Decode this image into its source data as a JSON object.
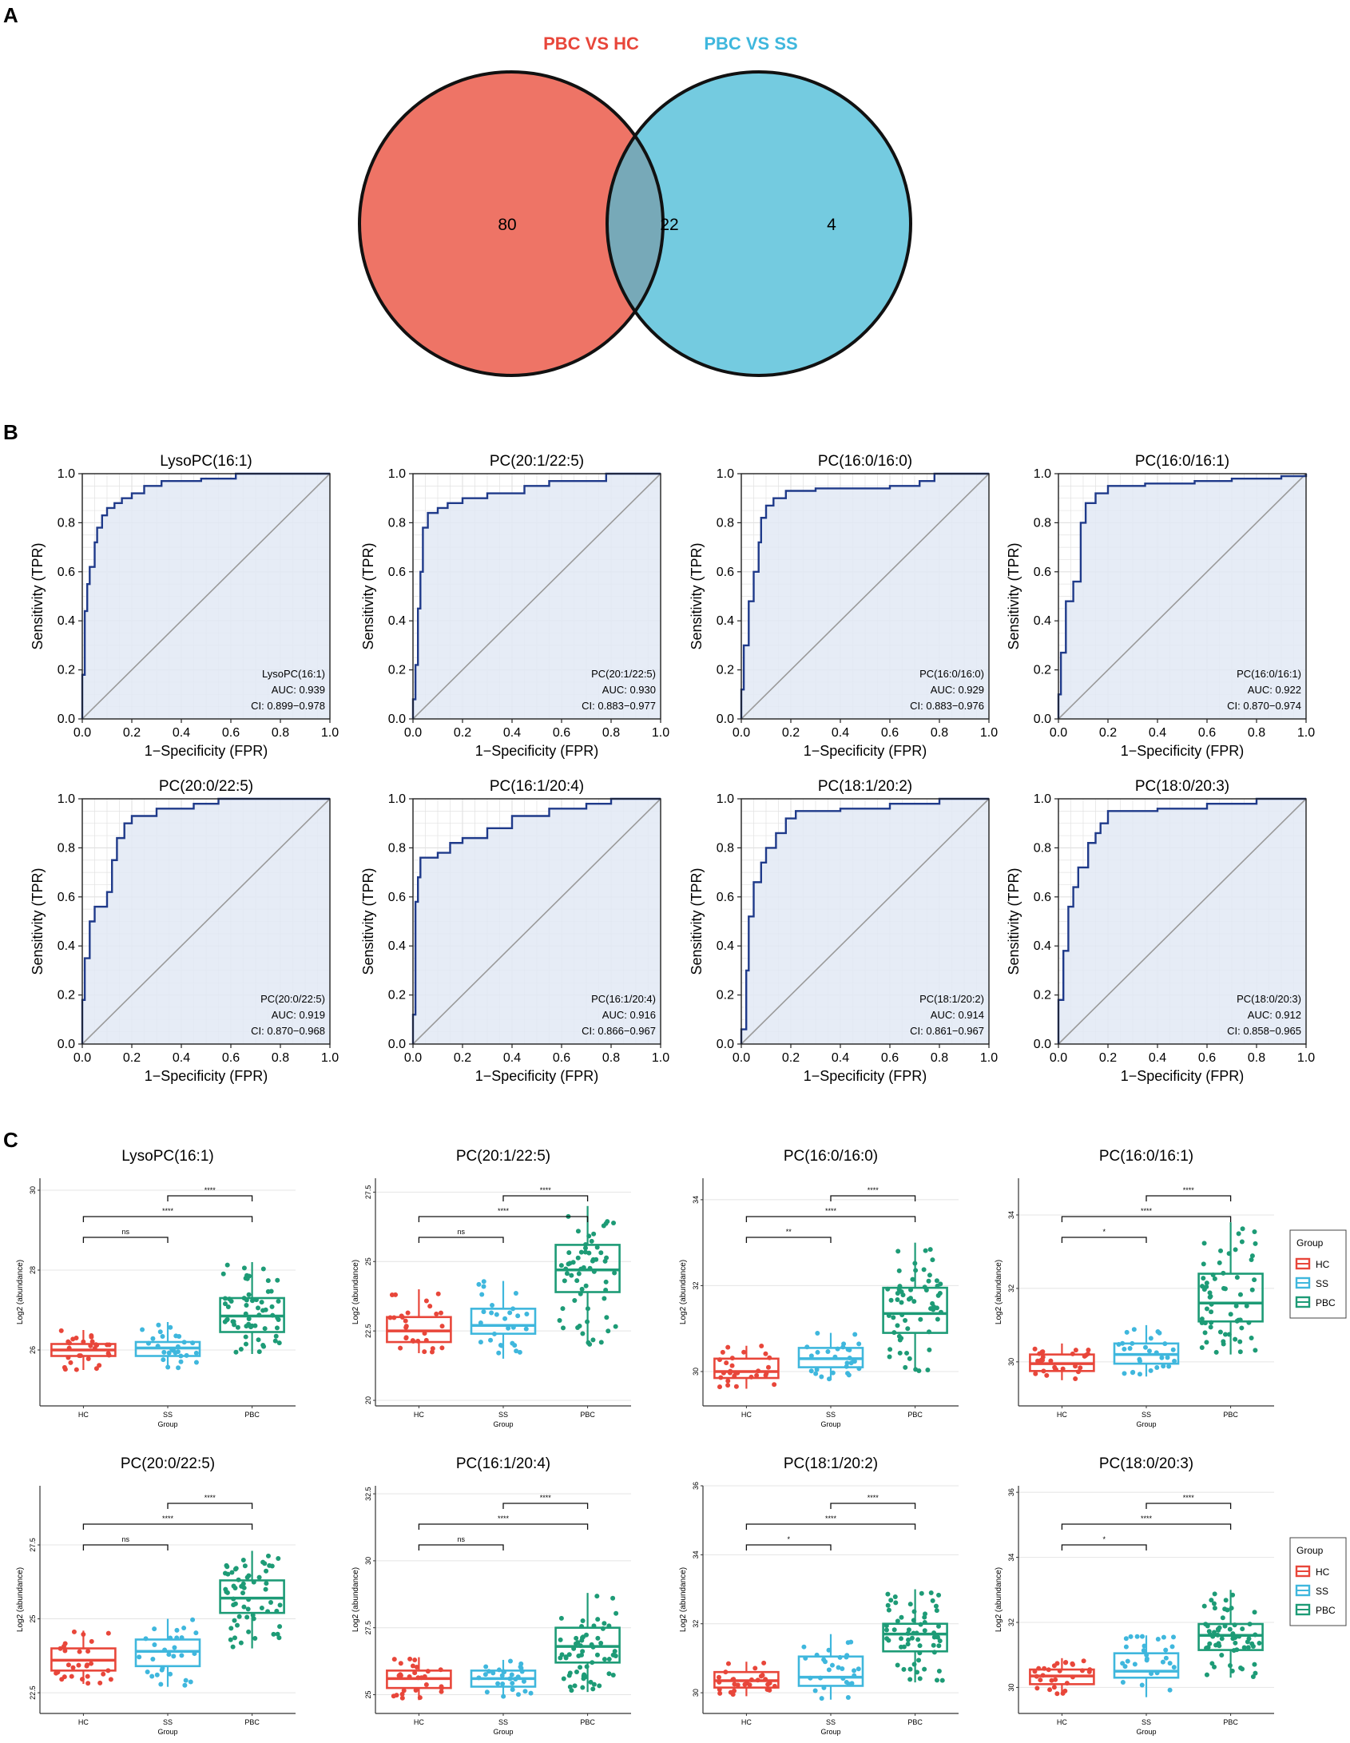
{
  "chart_data": [
    {
      "type": "venn",
      "panel": "A",
      "sets": [
        {
          "name": "PBC VS HC",
          "color": "#ee7466"
        },
        {
          "name": "PBC VS SS",
          "color": "#74cbe0"
        }
      ],
      "counts": {
        "only_first": "80",
        "intersection": "22",
        "only_second": "4"
      },
      "overlap_color": "#77a9b8"
    },
    {
      "type": "roc_grid",
      "panel": "B",
      "xlabel": "1−Specificity (FPR)",
      "ylabel": "Sensitivity (TPR)",
      "ticks": [
        "0.0",
        "0.2",
        "0.4",
        "0.6",
        "0.8",
        "1.0"
      ],
      "curve_color": "#1f3a8a",
      "fill_color": "#e2e9f4",
      "panels": [
        {
          "title": "LysoPC(16:1)",
          "note_name": "LysoPC(16:1)",
          "auc": "AUC: 0.939",
          "ci": "CI: 0.899−0.978",
          "points": [
            [
              0,
              0
            ],
            [
              0,
              0.18
            ],
            [
              0.01,
              0.44
            ],
            [
              0.02,
              0.55
            ],
            [
              0.03,
              0.62
            ],
            [
              0.05,
              0.72
            ],
            [
              0.06,
              0.78
            ],
            [
              0.08,
              0.83
            ],
            [
              0.1,
              0.86
            ],
            [
              0.13,
              0.88
            ],
            [
              0.16,
              0.9
            ],
            [
              0.2,
              0.92
            ],
            [
              0.25,
              0.95
            ],
            [
              0.32,
              0.97
            ],
            [
              0.48,
              0.98
            ],
            [
              0.62,
              1.0
            ],
            [
              1,
              1.0
            ]
          ]
        },
        {
          "title": "PC(20:1/22:5)",
          "note_name": "PC(20:1/22:5)",
          "auc": "AUC: 0.930",
          "ci": "CI: 0.883−0.977",
          "points": [
            [
              0,
              0
            ],
            [
              0,
              0.08
            ],
            [
              0.01,
              0.22
            ],
            [
              0.02,
              0.45
            ],
            [
              0.03,
              0.6
            ],
            [
              0.04,
              0.78
            ],
            [
              0.06,
              0.84
            ],
            [
              0.1,
              0.86
            ],
            [
              0.14,
              0.88
            ],
            [
              0.2,
              0.9
            ],
            [
              0.3,
              0.92
            ],
            [
              0.45,
              0.95
            ],
            [
              0.55,
              0.97
            ],
            [
              0.78,
              1.0
            ],
            [
              1,
              1.0
            ]
          ]
        },
        {
          "title": "PC(16:0/16:0)",
          "note_name": "PC(16:0/16:0)",
          "auc": "AUC: 0.929",
          "ci": "CI: 0.883−0.976",
          "points": [
            [
              0,
              0
            ],
            [
              0,
              0.12
            ],
            [
              0.01,
              0.3
            ],
            [
              0.03,
              0.48
            ],
            [
              0.05,
              0.6
            ],
            [
              0.07,
              0.72
            ],
            [
              0.08,
              0.82
            ],
            [
              0.1,
              0.87
            ],
            [
              0.13,
              0.9
            ],
            [
              0.18,
              0.93
            ],
            [
              0.3,
              0.94
            ],
            [
              0.6,
              0.95
            ],
            [
              0.72,
              0.97
            ],
            [
              0.78,
              1.0
            ],
            [
              1,
              1.0
            ]
          ]
        },
        {
          "title": "PC(16:0/16:1)",
          "note_name": "PC(16:0/16:1)",
          "auc": "AUC: 0.922",
          "ci": "CI: 0.870−0.974",
          "points": [
            [
              0,
              0
            ],
            [
              0,
              0.1
            ],
            [
              0.01,
              0.27
            ],
            [
              0.03,
              0.48
            ],
            [
              0.06,
              0.56
            ],
            [
              0.09,
              0.8
            ],
            [
              0.11,
              0.88
            ],
            [
              0.15,
              0.92
            ],
            [
              0.2,
              0.95
            ],
            [
              0.35,
              0.96
            ],
            [
              0.55,
              0.97
            ],
            [
              0.7,
              0.98
            ],
            [
              0.9,
              0.99
            ],
            [
              1,
              1.0
            ]
          ]
        },
        {
          "title": "PC(20:0/22:5)",
          "note_name": "PC(20:0/22:5)",
          "auc": "AUC: 0.919",
          "ci": "CI: 0.870−0.968",
          "points": [
            [
              0,
              0
            ],
            [
              0,
              0.18
            ],
            [
              0.01,
              0.35
            ],
            [
              0.03,
              0.5
            ],
            [
              0.05,
              0.56
            ],
            [
              0.1,
              0.62
            ],
            [
              0.12,
              0.75
            ],
            [
              0.14,
              0.84
            ],
            [
              0.17,
              0.9
            ],
            [
              0.2,
              0.93
            ],
            [
              0.3,
              0.96
            ],
            [
              0.45,
              0.98
            ],
            [
              0.55,
              1.0
            ],
            [
              1,
              1.0
            ]
          ]
        },
        {
          "title": "PC(16:1/20:4)",
          "note_name": "PC(16:1/20:4)",
          "auc": "AUC: 0.916",
          "ci": "CI: 0.866−0.967",
          "points": [
            [
              0,
              0
            ],
            [
              0,
              0.12
            ],
            [
              0.01,
              0.58
            ],
            [
              0.02,
              0.68
            ],
            [
              0.03,
              0.76
            ],
            [
              0.1,
              0.78
            ],
            [
              0.15,
              0.82
            ],
            [
              0.2,
              0.84
            ],
            [
              0.3,
              0.88
            ],
            [
              0.4,
              0.93
            ],
            [
              0.55,
              0.96
            ],
            [
              0.7,
              0.98
            ],
            [
              0.8,
              1.0
            ],
            [
              1,
              1.0
            ]
          ]
        },
        {
          "title": "PC(18:1/20:2)",
          "note_name": "PC(18:1/20:2)",
          "auc": "AUC: 0.914",
          "ci": "CI: 0.861−0.967",
          "points": [
            [
              0,
              0
            ],
            [
              0,
              0.06
            ],
            [
              0.02,
              0.3
            ],
            [
              0.03,
              0.52
            ],
            [
              0.05,
              0.66
            ],
            [
              0.08,
              0.74
            ],
            [
              0.1,
              0.8
            ],
            [
              0.14,
              0.86
            ],
            [
              0.18,
              0.92
            ],
            [
              0.22,
              0.95
            ],
            [
              0.4,
              0.96
            ],
            [
              0.6,
              0.98
            ],
            [
              0.8,
              1.0
            ],
            [
              1,
              1.0
            ]
          ]
        },
        {
          "title": "PC(18:0/20:3)",
          "note_name": "PC(18:0/20:3)",
          "auc": "AUC: 0.912",
          "ci": "CI: 0.858−0.965",
          "points": [
            [
              0,
              0
            ],
            [
              0,
              0.18
            ],
            [
              0.02,
              0.38
            ],
            [
              0.04,
              0.56
            ],
            [
              0.06,
              0.64
            ],
            [
              0.08,
              0.72
            ],
            [
              0.12,
              0.82
            ],
            [
              0.15,
              0.86
            ],
            [
              0.17,
              0.9
            ],
            [
              0.2,
              0.95
            ],
            [
              0.4,
              0.96
            ],
            [
              0.6,
              0.98
            ],
            [
              0.8,
              1.0
            ],
            [
              1,
              1.0
            ]
          ]
        }
      ]
    },
    {
      "type": "boxplot_grid",
      "panel": "C",
      "xlabel": "Group",
      "ylabel": "Log2 (abundance)",
      "categories": [
        "HC",
        "SS",
        "PBC"
      ],
      "colors": [
        "#e8463a",
        "#3fb7dd",
        "#1d9b76"
      ],
      "legend": {
        "title": "Group",
        "items": [
          "HC",
          "SS",
          "PBC"
        ]
      },
      "panels": [
        {
          "title": "LysoPC(16:1)",
          "ylim": [
            24.6,
            30.3
          ],
          "yticks": [
            26,
            28,
            30
          ],
          "boxes": [
            [
              25.5,
              25.85,
              26.0,
              26.15,
              26.5
            ],
            [
              25.55,
              25.85,
              26.05,
              26.2,
              26.7
            ],
            [
              25.9,
              26.45,
              26.85,
              27.3,
              28.2
            ]
          ],
          "sig": [
            "ns",
            "****",
            "****"
          ]
        },
        {
          "title": "PC(20:1/22:5)",
          "ylim": [
            19.8,
            28.0
          ],
          "yticks": [
            20.0,
            22.5,
            25.0,
            27.5
          ],
          "boxes": [
            [
              21.7,
              22.1,
              22.5,
              23.0,
              24.0
            ],
            [
              21.5,
              22.4,
              22.7,
              23.3,
              24.3
            ],
            [
              22.0,
              23.9,
              24.7,
              25.6,
              27.0
            ]
          ],
          "sig": [
            "ns",
            "****",
            "****"
          ]
        },
        {
          "title": "PC(16:0/16:0)",
          "ylim": [
            29.2,
            34.5
          ],
          "yticks": [
            30,
            32,
            34
          ],
          "boxes": [
            [
              29.6,
              29.85,
              30.0,
              30.3,
              30.6
            ],
            [
              29.8,
              30.1,
              30.3,
              30.55,
              30.9
            ],
            [
              30.0,
              30.9,
              31.35,
              31.95,
              33.0
            ]
          ],
          "sig": [
            "**",
            "****",
            "****"
          ]
        },
        {
          "title": "PC(16:0/16:1)",
          "ylim": [
            28.8,
            35.0
          ],
          "yticks": [
            30,
            32,
            34
          ],
          "boxes": [
            [
              29.5,
              29.75,
              29.95,
              30.2,
              30.5
            ],
            [
              29.6,
              29.95,
              30.2,
              30.5,
              31.0
            ],
            [
              30.2,
              31.1,
              31.6,
              32.4,
              33.8
            ]
          ],
          "sig": [
            "*",
            "****",
            "****"
          ]
        },
        {
          "title": "PC(20:0/22:5)",
          "ylim": [
            21.8,
            29.5
          ],
          "yticks": [
            22.5,
            25.0,
            27.5
          ],
          "boxes": [
            [
              22.8,
              23.25,
              23.6,
              24.0,
              24.6
            ],
            [
              22.7,
              23.4,
              23.9,
              24.3,
              25.0
            ],
            [
              24.0,
              25.2,
              25.7,
              26.3,
              27.3
            ]
          ],
          "sig": [
            "ns",
            "****",
            "****"
          ]
        },
        {
          "title": "PC(16:1/20:4)",
          "ylim": [
            24.3,
            32.8
          ],
          "yticks": [
            25.0,
            27.5,
            30.0,
            32.5
          ],
          "boxes": [
            [
              24.8,
              25.25,
              25.6,
              25.9,
              26.4
            ],
            [
              24.9,
              25.3,
              25.6,
              25.9,
              26.3
            ],
            [
              25.1,
              26.2,
              26.8,
              27.5,
              28.8
            ]
          ],
          "sig": [
            "ns",
            "****",
            "****"
          ]
        },
        {
          "title": "PC(18:1/20:2)",
          "ylim": [
            29.4,
            36.0
          ],
          "yticks": [
            30,
            32,
            34,
            36
          ],
          "boxes": [
            [
              29.9,
              30.15,
              30.35,
              30.6,
              30.9
            ],
            [
              29.8,
              30.2,
              30.45,
              31.05,
              31.7
            ],
            [
              30.3,
              31.2,
              31.7,
              32.0,
              33.0
            ]
          ],
          "sig": [
            "*",
            "****",
            "****"
          ]
        },
        {
          "title": "PC(18:0/20:3)",
          "ylim": [
            29.2,
            36.2
          ],
          "yticks": [
            30,
            32,
            34,
            36
          ],
          "boxes": [
            [
              29.8,
              30.1,
              30.35,
              30.55,
              30.9
            ],
            [
              29.7,
              30.3,
              30.5,
              31.05,
              31.6
            ],
            [
              30.3,
              31.15,
              31.6,
              31.95,
              33.0
            ]
          ],
          "sig": [
            "*",
            "****",
            "****"
          ]
        }
      ]
    }
  ],
  "panel_labels": {
    "a": "A",
    "b": "B",
    "c": "C"
  }
}
